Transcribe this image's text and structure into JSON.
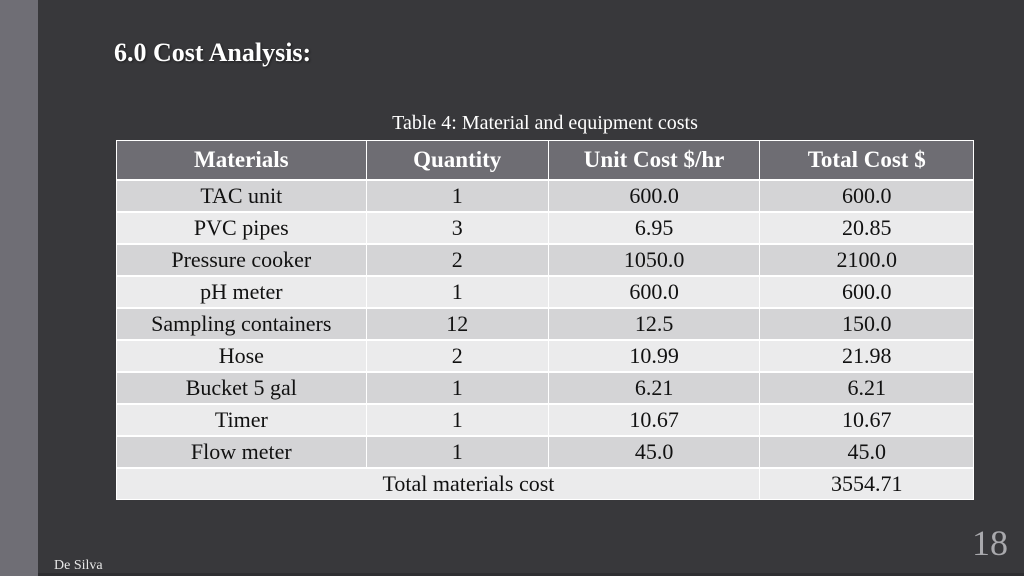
{
  "slide": {
    "title": "6.0 Cost Analysis:",
    "author": "De Silva",
    "page_number": "18"
  },
  "table": {
    "caption": "Table 4: Material and equipment costs",
    "headers": [
      "Materials",
      "Quantity",
      "Unit Cost $/hr",
      "Total Cost $"
    ],
    "rows": [
      {
        "material": "TAC unit",
        "quantity": "1",
        "unit_cost": "600.0",
        "total_cost": "600.0"
      },
      {
        "material": "PVC pipes",
        "quantity": "3",
        "unit_cost": "6.95",
        "total_cost": "20.85"
      },
      {
        "material": "Pressure cooker",
        "quantity": "2",
        "unit_cost": "1050.0",
        "total_cost": "2100.0"
      },
      {
        "material": "pH meter",
        "quantity": "1",
        "unit_cost": "600.0",
        "total_cost": "600.0"
      },
      {
        "material": "Sampling containers",
        "quantity": "12",
        "unit_cost": "12.5",
        "total_cost": "150.0"
      },
      {
        "material": "Hose",
        "quantity": "2",
        "unit_cost": "10.99",
        "total_cost": "21.98"
      },
      {
        "material": "Bucket 5 gal",
        "quantity": "1",
        "unit_cost": "6.21",
        "total_cost": "6.21"
      },
      {
        "material": "Timer",
        "quantity": "1",
        "unit_cost": "10.67",
        "total_cost": "10.67"
      },
      {
        "material": "Flow meter",
        "quantity": "1",
        "unit_cost": "45.0",
        "total_cost": "45.0"
      }
    ],
    "total": {
      "label": "Total materials cost",
      "value": "3554.71"
    }
  },
  "colors": {
    "background": "#38383b",
    "left_bar": "#6f6e75",
    "header_bg": "#6e6d73",
    "row_odd": "#d4d4d6",
    "row_even": "#ebebec"
  }
}
